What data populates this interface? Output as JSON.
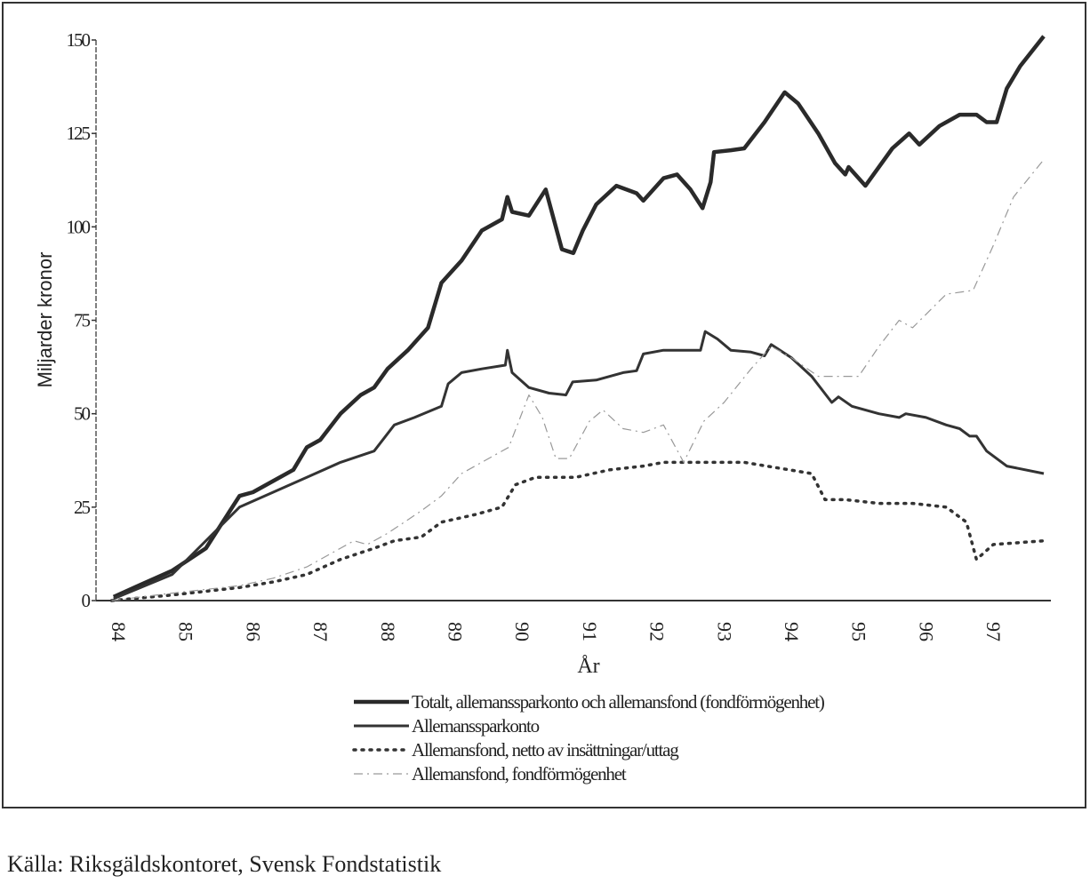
{
  "chart_data": {
    "type": "line",
    "title": "",
    "xlabel": "År",
    "ylabel": "Miljarder kronor",
    "xlim": [
      84,
      98
    ],
    "ylim": [
      0,
      150
    ],
    "xticks": [
      "84",
      "85",
      "86",
      "87",
      "88",
      "89",
      "90",
      "91",
      "92",
      "93",
      "94",
      "95",
      "96",
      "97"
    ],
    "yticks": [
      "0",
      "25",
      "50",
      "75",
      "100",
      "125",
      "150"
    ],
    "grid": false,
    "legend_position": "bottom",
    "series": [
      {
        "name": "Totalt, allemanssparkonto och allemansfond (fondförmögenhet)",
        "style": "thick-solid",
        "x": [
          84.13,
          84.5,
          85,
          85.5,
          86,
          86.2,
          86.5,
          86.8,
          87,
          87.2,
          87.5,
          87.8,
          88,
          88.2,
          88.5,
          88.8,
          89,
          89.3,
          89.6,
          89.9,
          89.98,
          90.05,
          90.3,
          90.55,
          90.79,
          90.96,
          91.1,
          91.3,
          91.6,
          91.9,
          92.0,
          92.3,
          92.5,
          92.7,
          92.88,
          93.0,
          93.05,
          93.3,
          93.5,
          93.8,
          93.95,
          94.1,
          94.3,
          94.6,
          94.85,
          95,
          95.05,
          95.3,
          95.7,
          95.95,
          96.1,
          96.4,
          96.7,
          96.95,
          97.1,
          97.25,
          97.4,
          97.6,
          97.95
        ],
        "y": [
          1,
          4,
          8,
          14,
          28,
          29,
          32,
          35,
          41,
          43,
          50,
          55,
          57,
          62,
          67,
          73,
          85,
          91,
          99,
          102,
          108,
          104,
          103,
          110,
          94,
          93,
          99,
          106,
          111,
          109,
          107,
          113,
          114,
          110,
          105,
          112,
          120,
          120.5,
          121,
          128,
          132,
          136,
          133,
          125,
          117,
          114,
          116,
          111,
          121,
          125,
          122,
          127,
          130,
          130,
          128,
          128,
          137,
          143,
          151
        ]
      },
      {
        "name": "Allemanssparkonto",
        "style": "solid",
        "x": [
          84.13,
          85,
          86,
          86.5,
          87,
          87.5,
          88,
          88.3,
          88.6,
          89,
          89.1,
          89.3,
          89.6,
          89.95,
          89.98,
          90.05,
          90.3,
          90.6,
          90.85,
          90.95,
          91.3,
          91.7,
          91.9,
          92.0,
          92.3,
          92.6,
          92.85,
          92.92,
          93.1,
          93.3,
          93.6,
          93.8,
          93.9,
          94.2,
          94.5,
          94.8,
          94.9,
          95.1,
          95.5,
          95.8,
          95.9,
          96.2,
          96.5,
          96.7,
          96.85,
          96.95,
          97.1,
          97.4,
          97.95
        ],
        "y": [
          0.5,
          7,
          25,
          29,
          33,
          37,
          40,
          47,
          49,
          52,
          58,
          61,
          62,
          63,
          67,
          61,
          57,
          55.5,
          55,
          58.5,
          59,
          61,
          61.5,
          66,
          67,
          67,
          67,
          72,
          70,
          67,
          66.5,
          65.5,
          68.5,
          65,
          60,
          53,
          54.5,
          52,
          50,
          49,
          50,
          49,
          47,
          46,
          44,
          44,
          40,
          36,
          34
        ]
      },
      {
        "name": "Allemansfond, netto av insättningar/uttag",
        "style": "dotted",
        "x": [
          84.1,
          85,
          86,
          86.5,
          87,
          87.5,
          88,
          88.3,
          88.7,
          89,
          89.5,
          89.9,
          90.1,
          90.4,
          91,
          91.5,
          92,
          92.3,
          93,
          93.5,
          94,
          94.5,
          94.7,
          95,
          95.5,
          96,
          96.5,
          96.8,
          96.95,
          97.2,
          97.95
        ],
        "y": [
          0,
          1.5,
          3.5,
          5,
          7,
          11,
          14,
          16,
          17,
          21,
          23,
          25,
          31,
          33,
          33,
          35,
          36,
          37,
          37,
          37,
          35.5,
          34,
          27,
          27,
          26,
          26,
          25,
          21,
          11,
          15,
          16
        ]
      },
      {
        "name": "Allemansfond, fondförmögenhet",
        "style": "dash-dot",
        "x": [
          84.1,
          85,
          86,
          86.5,
          87,
          87.5,
          87.7,
          87.9,
          88.2,
          88.7,
          89,
          89.3,
          89.7,
          90,
          90.3,
          90.5,
          90.7,
          90.9,
          91.2,
          91.4,
          91.7,
          92,
          92.3,
          92.6,
          92.9,
          93.2,
          93.6,
          93.9,
          94.2,
          94.6,
          94.9,
          95.2,
          95.5,
          95.8,
          96,
          96.5,
          96.9,
          97.2,
          97.5,
          97.95
        ],
        "y": [
          0,
          2,
          4,
          6,
          9,
          14,
          16,
          15,
          18,
          24,
          28,
          34,
          38,
          41,
          55,
          49,
          38,
          38,
          48,
          51,
          46,
          45,
          47,
          37,
          48,
          53,
          62,
          68,
          65,
          60,
          60,
          60,
          68,
          75,
          73,
          82,
          83,
          95,
          108,
          118
        ]
      }
    ]
  },
  "source": "Källa: Riksgäldskontoret, Svensk Fondstatistik"
}
